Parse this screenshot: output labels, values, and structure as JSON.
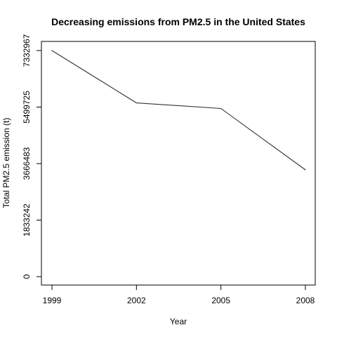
{
  "chart_data": {
    "type": "line",
    "title": "Decreasing emissions from PM2.5 in the United States",
    "xlabel": "Year",
    "ylabel": "Total PM2.5 emission (t)",
    "x": [
      "1999",
      "2002",
      "2005",
      "2008"
    ],
    "series": [
      {
        "values": [
          7332967,
          5635780,
          5454703,
          3464206
        ]
      }
    ],
    "yticks": [
      "0",
      "1833242",
      "3666483",
      "5499725",
      "7332967"
    ],
    "ylim": [
      0,
      7332967
    ],
    "grid": false,
    "legend": "none",
    "line_color": "#333333"
  }
}
